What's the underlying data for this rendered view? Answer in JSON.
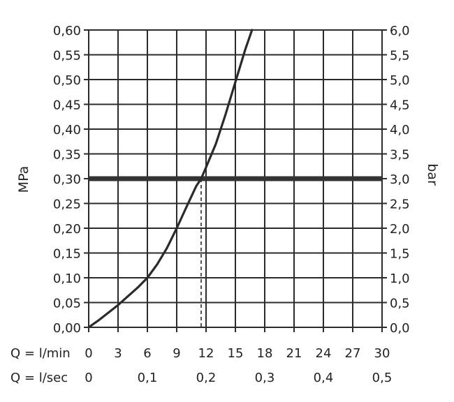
{
  "chart_data": {
    "type": "line",
    "xlabel_rows": [
      {
        "label": "Q = l/min",
        "ticks": [
          0,
          3,
          6,
          9,
          12,
          15,
          18,
          21,
          24,
          27,
          30
        ],
        "tick_labels": [
          "0",
          "3",
          "6",
          "9",
          "12",
          "15",
          "18",
          "21",
          "24",
          "27",
          "30"
        ]
      },
      {
        "label": "Q = l/sec",
        "ticks": [
          0,
          0.1,
          0.2,
          0.3,
          0.4,
          0.5
        ],
        "tick_labels": [
          "0",
          "0,1",
          "0,2",
          "0,3",
          "0,4",
          "0,5"
        ]
      }
    ],
    "xlim": [
      0,
      30
    ],
    "ylabel": "MPa",
    "ylabel_right": "bar",
    "ylim": [
      0,
      0.6
    ],
    "y_ticks": [
      0,
      0.05,
      0.1,
      0.15,
      0.2,
      0.25,
      0.3,
      0.35,
      0.4,
      0.45,
      0.5,
      0.55,
      0.6
    ],
    "y_tick_labels": [
      "0,00",
      "0,05",
      "0,10",
      "0,15",
      "0,20",
      "0,25",
      "0,30",
      "0,35",
      "0,40",
      "0,45",
      "0,50",
      "0,55",
      "0,60"
    ],
    "y_right_tick_labels": [
      "0,0",
      "0,5",
      "1,0",
      "1,5",
      "2,0",
      "2,5",
      "3,0",
      "3,5",
      "4,0",
      "4,5",
      "5,0",
      "5,5",
      "6,0"
    ],
    "grid": true,
    "series": [
      {
        "x": [
          0,
          1,
          3,
          5,
          6,
          7,
          8,
          9,
          10,
          11,
          11.5,
          12,
          13,
          14,
          15,
          16,
          16.7
        ],
        "y": [
          0,
          0.014,
          0.045,
          0.08,
          0.1,
          0.127,
          0.16,
          0.2,
          0.243,
          0.285,
          0.3,
          0.323,
          0.37,
          0.43,
          0.495,
          0.56,
          0.6
        ],
        "color": "#2a2a2a"
      }
    ],
    "reference_line": {
      "y": 0.3,
      "color": "#333333"
    },
    "intersection_marker": {
      "x": 11.5,
      "y": 0.3,
      "style": "dashed"
    }
  }
}
